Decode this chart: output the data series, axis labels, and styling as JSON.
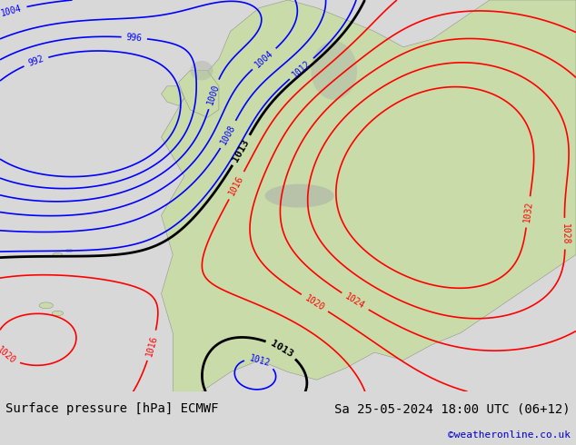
{
  "title_left": "Surface pressure [hPa] ECMWF",
  "title_right": "Sa 25-05-2024 18:00 UTC (06+12)",
  "credit": "©weatheronline.co.uk",
  "ocean_color": "#b8d4e8",
  "land_color": "#c8dba8",
  "mountain_color": "#b0b8a8",
  "footer_bg": "#d8d8d8",
  "footer_text_color": "#000000",
  "credit_color": "#0000cc",
  "font_size_footer": 10,
  "fig_width": 6.34,
  "fig_height": 4.9,
  "levels_blue": [
    992,
    996,
    1000,
    1004,
    1008,
    1012
  ],
  "levels_black": [
    1013
  ],
  "levels_red": [
    1016,
    1020,
    1024,
    1028,
    1032
  ]
}
